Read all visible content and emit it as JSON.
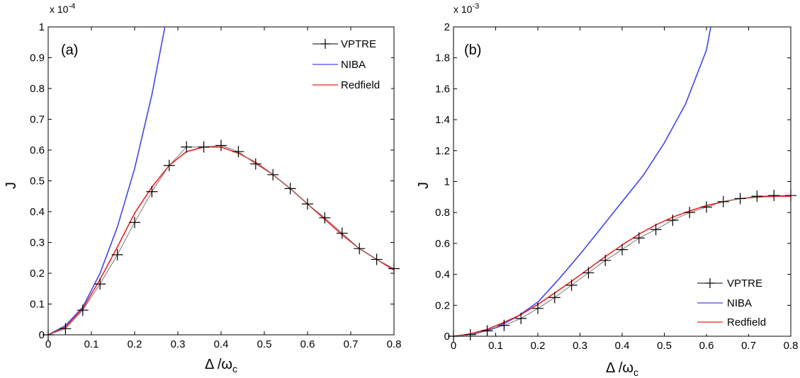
{
  "chart_data": [
    {
      "type": "line",
      "panel_label": "(a)",
      "xlabel": "Δ /ω",
      "xlabel_sub": "c",
      "ylabel": "J",
      "y_multiplier": "x 10",
      "y_multiplier_exp": "-4",
      "xlim": [
        0,
        0.8
      ],
      "ylim": [
        0,
        1
      ],
      "x_ticks": [
        "0",
        "0.1",
        "0.2",
        "0.3",
        "0.4",
        "0.5",
        "0.6",
        "0.7",
        "0.8"
      ],
      "y_ticks": [
        "0",
        "0.1",
        "0.2",
        "0.3",
        "0.4",
        "0.5",
        "0.6",
        "0.7",
        "0.8",
        "0.9",
        "1"
      ],
      "legend_position": "top-right",
      "series": [
        {
          "name": "VPTRE",
          "color": "#000000",
          "marker": "+",
          "x": [
            0,
            0.04,
            0.08,
            0.12,
            0.16,
            0.2,
            0.24,
            0.28,
            0.32,
            0.36,
            0.4,
            0.44,
            0.48,
            0.52,
            0.56,
            0.6,
            0.64,
            0.68,
            0.72,
            0.76,
            0.8
          ],
          "y": [
            0,
            0.02,
            0.08,
            0.165,
            0.26,
            0.365,
            0.465,
            0.55,
            0.61,
            0.61,
            0.615,
            0.595,
            0.555,
            0.52,
            0.475,
            0.425,
            0.38,
            0.33,
            0.28,
            0.245,
            0.215
          ]
        },
        {
          "name": "NIBA",
          "color": "#4444ee",
          "x": [
            0,
            0.04,
            0.08,
            0.12,
            0.16,
            0.2,
            0.24,
            0.27
          ],
          "y": [
            0,
            0.03,
            0.09,
            0.2,
            0.35,
            0.54,
            0.78,
            1.0
          ]
        },
        {
          "name": "Redfield",
          "color": "#ee2222",
          "x": [
            0,
            0.04,
            0.08,
            0.12,
            0.16,
            0.2,
            0.24,
            0.28,
            0.32,
            0.36,
            0.4,
            0.44,
            0.48,
            0.52,
            0.56,
            0.6,
            0.64,
            0.68,
            0.72,
            0.76,
            0.8
          ],
          "y": [
            0,
            0.025,
            0.085,
            0.18,
            0.285,
            0.395,
            0.48,
            0.55,
            0.595,
            0.61,
            0.61,
            0.59,
            0.56,
            0.52,
            0.475,
            0.425,
            0.375,
            0.325,
            0.28,
            0.245,
            0.21
          ]
        }
      ]
    },
    {
      "type": "line",
      "panel_label": "(b)",
      "xlabel": "Δ /ω",
      "xlabel_sub": "c",
      "ylabel": "J",
      "y_multiplier": "x 10",
      "y_multiplier_exp": "-3",
      "xlim": [
        0,
        0.8
      ],
      "ylim": [
        0,
        2
      ],
      "x_ticks": [
        "0",
        "0.1",
        "0.2",
        "0.3",
        "0.4",
        "0.5",
        "0.6",
        "0.7",
        "0.8"
      ],
      "y_ticks": [
        "0",
        "0.2",
        "0.4",
        "0.6",
        "0.8",
        "1",
        "1.2",
        "1.4",
        "1.6",
        "1.8",
        "2"
      ],
      "legend_position": "bottom-right",
      "series": [
        {
          "name": "VPTRE",
          "color": "#000000",
          "marker": "+",
          "x": [
            0,
            0.04,
            0.08,
            0.12,
            0.16,
            0.2,
            0.24,
            0.28,
            0.32,
            0.36,
            0.4,
            0.44,
            0.48,
            0.52,
            0.56,
            0.6,
            0.64,
            0.68,
            0.72,
            0.76,
            0.8
          ],
          "y": [
            0,
            0.01,
            0.035,
            0.07,
            0.115,
            0.18,
            0.25,
            0.33,
            0.41,
            0.49,
            0.56,
            0.635,
            0.69,
            0.75,
            0.8,
            0.835,
            0.87,
            0.89,
            0.905,
            0.91,
            0.91
          ]
        },
        {
          "name": "NIBA",
          "color": "#4444ee",
          "x": [
            0,
            0.05,
            0.1,
            0.15,
            0.2,
            0.25,
            0.3,
            0.35,
            0.4,
            0.45,
            0.5,
            0.55,
            0.6,
            0.61
          ],
          "y": [
            0,
            0.015,
            0.055,
            0.125,
            0.22,
            0.37,
            0.53,
            0.7,
            0.87,
            1.04,
            1.25,
            1.5,
            1.85,
            2.0
          ]
        },
        {
          "name": "Redfield",
          "color": "#ee2222",
          "x": [
            0,
            0.04,
            0.08,
            0.12,
            0.16,
            0.2,
            0.24,
            0.28,
            0.32,
            0.36,
            0.4,
            0.44,
            0.48,
            0.52,
            0.56,
            0.6,
            0.64,
            0.68,
            0.72,
            0.76,
            0.8
          ],
          "y": [
            0,
            0.015,
            0.045,
            0.09,
            0.14,
            0.205,
            0.28,
            0.355,
            0.435,
            0.515,
            0.59,
            0.66,
            0.72,
            0.77,
            0.81,
            0.845,
            0.87,
            0.89,
            0.9,
            0.905,
            0.905
          ]
        }
      ]
    }
  ]
}
